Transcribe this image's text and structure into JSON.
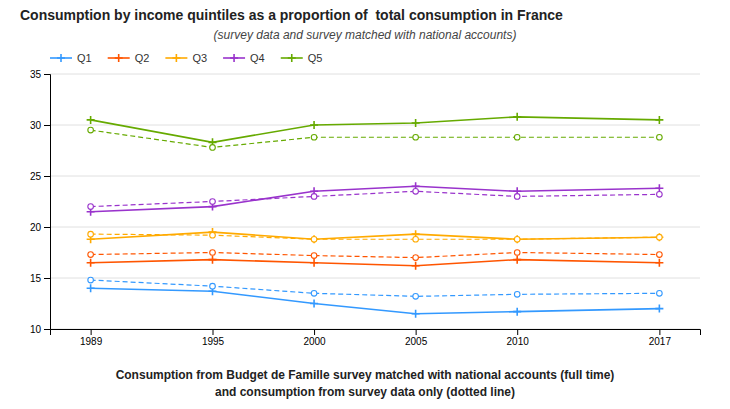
{
  "chart_data": {
    "type": "line",
    "title": "Consumption by income quintiles as a proportion of  total consumption in France",
    "subtitle": "(survey data and survey matched with national accounts)",
    "annotations": [
      "Consumption from Budget de Famille survey matched with national accounts (full time)",
      "and consumption from survey data only (dotted line)"
    ],
    "x": [
      1989,
      1995,
      2000,
      2005,
      2010,
      2017
    ],
    "xlim": [
      1987,
      2019
    ],
    "xticks": [
      1989,
      1995,
      2000,
      2005,
      2010,
      2017
    ],
    "ylim": [
      10,
      35
    ],
    "yticks": [
      10,
      15,
      20,
      25,
      30,
      35
    ],
    "grid": true,
    "legend": "upper left",
    "series": [
      {
        "name": "Q1",
        "color": "#3399FF",
        "line_style": "solid",
        "marker": "plus",
        "values": [
          14.0,
          13.7,
          12.5,
          11.5,
          11.7,
          12.0
        ]
      },
      {
        "color": "#3399FF",
        "line_style": "dashed",
        "marker": "circle",
        "values": [
          14.8,
          14.2,
          13.5,
          13.2,
          13.4,
          13.5
        ]
      },
      {
        "name": "Q2",
        "color": "#FF5500",
        "line_style": "solid",
        "marker": "plus",
        "values": [
          16.5,
          16.8,
          16.5,
          16.2,
          16.8,
          16.5
        ]
      },
      {
        "color": "#FF5500",
        "line_style": "dashed",
        "marker": "circle",
        "values": [
          17.3,
          17.5,
          17.2,
          17.0,
          17.5,
          17.3
        ]
      },
      {
        "name": "Q3",
        "color": "#FFAA00",
        "line_style": "solid",
        "marker": "plus",
        "values": [
          18.8,
          19.5,
          18.8,
          19.3,
          18.8,
          19.0
        ]
      },
      {
        "color": "#FFAA00",
        "line_style": "dashed",
        "marker": "circle",
        "values": [
          19.3,
          19.2,
          18.8,
          18.8,
          18.8,
          19.0
        ]
      },
      {
        "name": "Q4",
        "color": "#9933CC",
        "line_style": "solid",
        "marker": "plus",
        "values": [
          21.5,
          22.0,
          23.5,
          24.0,
          23.5,
          23.8
        ]
      },
      {
        "color": "#9933CC",
        "line_style": "dashed",
        "marker": "circle",
        "values": [
          22.0,
          22.5,
          23.0,
          23.5,
          23.0,
          23.2
        ]
      },
      {
        "name": "Q5",
        "color": "#66AA00",
        "line_style": "solid",
        "marker": "plus",
        "values": [
          30.5,
          28.3,
          30.0,
          30.2,
          30.8,
          30.5
        ]
      },
      {
        "color": "#66AA00",
        "line_style": "dashed",
        "marker": "circle",
        "values": [
          29.5,
          27.8,
          28.8,
          28.8,
          28.8,
          28.8
        ]
      }
    ]
  }
}
